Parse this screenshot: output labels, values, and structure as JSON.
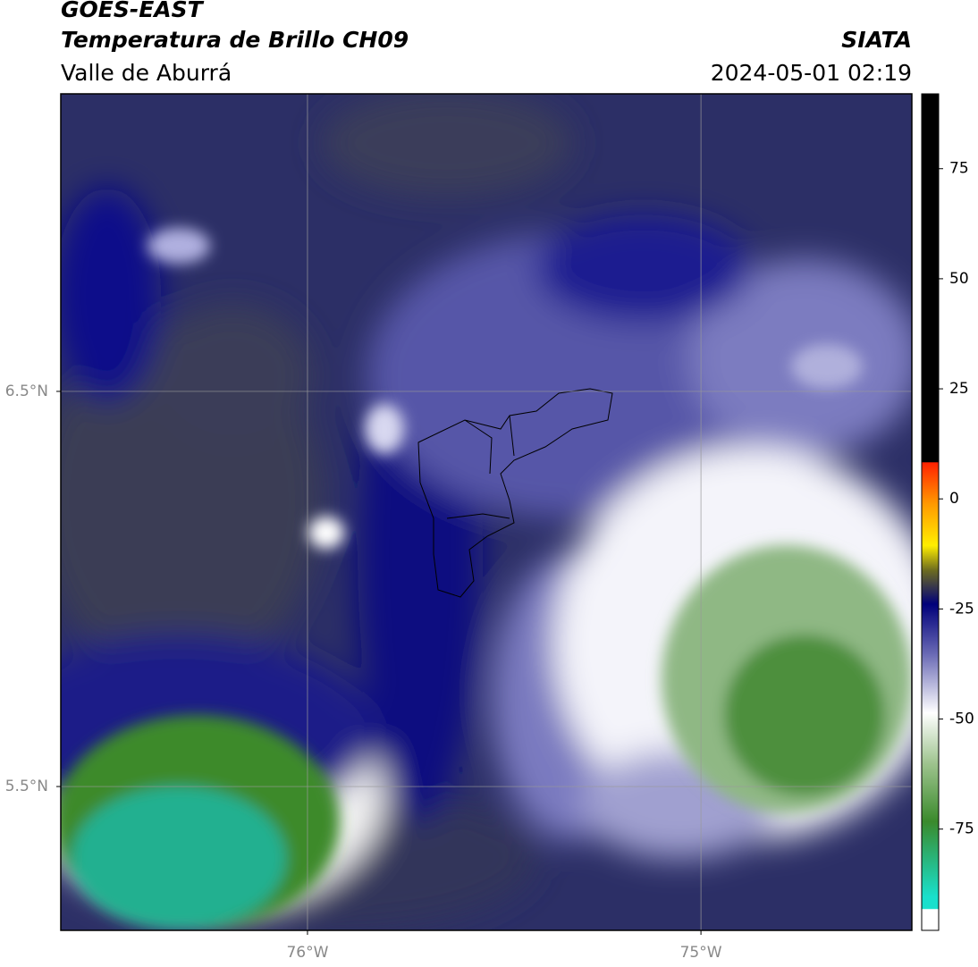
{
  "header": {
    "title": "GOES-EAST",
    "subtitle": "Temperatura de Brillo CH09",
    "region": "Valle de Aburrá",
    "source": "SIATA",
    "datetime": "2024-05-01 02:19"
  },
  "map": {
    "xlim": [
      -76.627,
      -74.464
    ],
    "ylim": [
      5.136,
      7.253
    ],
    "xticks": [
      {
        "value": -76,
        "label": "76°W"
      },
      {
        "value": -75,
        "label": "75°W"
      }
    ],
    "yticks": [
      {
        "value": 6.5,
        "label": "6.5°N"
      },
      {
        "value": 5.5,
        "label": "5.5°N"
      }
    ],
    "grid": true
  },
  "colorbar": {
    "lim": [
      -98,
      92
    ],
    "ticks": [
      75,
      50,
      25,
      0,
      -25,
      -50,
      -75
    ]
  }
}
